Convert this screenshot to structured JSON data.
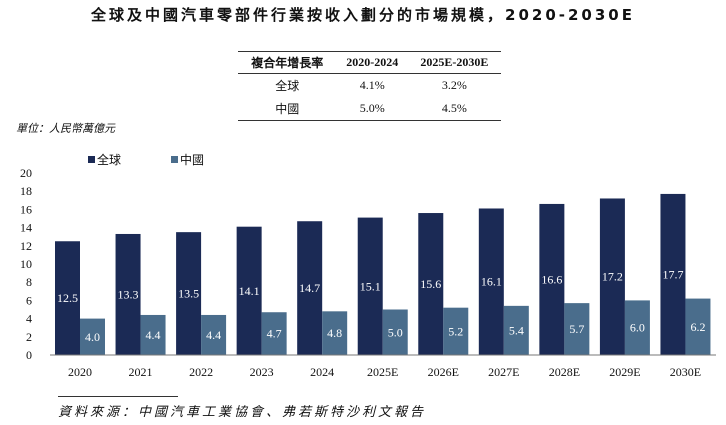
{
  "title": "全球及中國汽車零部件行業按收入劃分的市場規模，2020-2030E",
  "cagr_table": {
    "headers": [
      "複合年增長率",
      "2020-2024",
      "2025E-2030E"
    ],
    "rows": [
      [
        "全球",
        "4.1%",
        "3.2%"
      ],
      [
        "中國",
        "5.0%",
        "4.5%"
      ]
    ]
  },
  "unit": "單位：人民幣萬億元",
  "source": "資料來源：中國汽車工業協會、弗若斯特沙利文報告",
  "chart_data": {
    "type": "bar",
    "categories": [
      "2020",
      "2021",
      "2022",
      "2023",
      "2024",
      "2025E",
      "2026E",
      "2027E",
      "2028E",
      "2029E",
      "2030E"
    ],
    "series": [
      {
        "name": "全球",
        "color": "#1b2a55",
        "values": [
          12.5,
          13.3,
          13.5,
          14.1,
          14.7,
          15.1,
          15.6,
          16.1,
          16.6,
          17.2,
          17.7
        ]
      },
      {
        "name": "中國",
        "color": "#4a6d8c",
        "values": [
          4.0,
          4.4,
          4.4,
          4.7,
          4.8,
          5.0,
          5.2,
          5.4,
          5.7,
          6.0,
          6.2
        ]
      }
    ],
    "ylim": [
      0,
      20
    ],
    "yticks": [
      0,
      2,
      4,
      6,
      8,
      10,
      12,
      14,
      16,
      18,
      20
    ],
    "legend": "top-left",
    "grid": false
  }
}
